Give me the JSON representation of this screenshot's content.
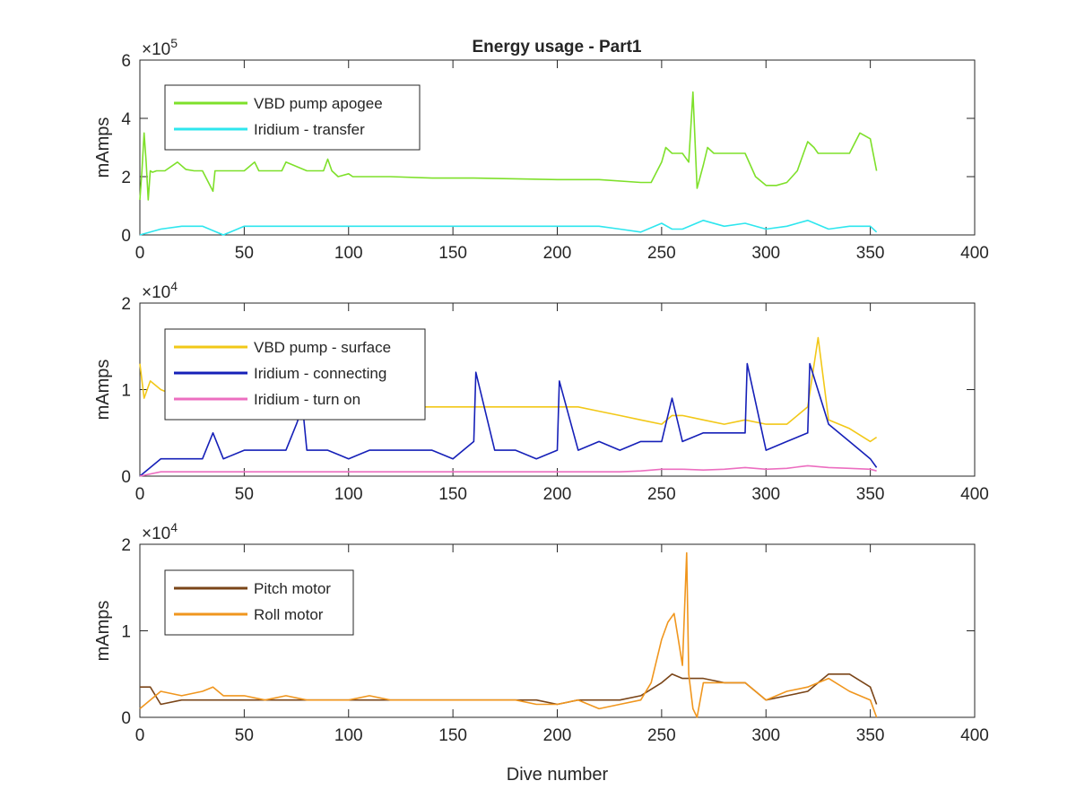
{
  "figure": {
    "title": "Energy usage - Part1"
  },
  "chart_data": [
    {
      "type": "line",
      "panel": "top",
      "title": "Energy usage - Part1",
      "xlabel": "",
      "ylabel": "mAmps",
      "y_exponent_base": "×10",
      "y_exponent": "5",
      "xlim": [
        0,
        400
      ],
      "ylim": [
        0,
        6
      ],
      "xticks": [
        0,
        50,
        100,
        150,
        200,
        250,
        300,
        350,
        400
      ],
      "yticks": [
        0,
        2,
        4,
        6
      ],
      "grid": false,
      "legend_position": "upper-left",
      "series": [
        {
          "name": "VBD pump apogee",
          "color": "#7ee02a",
          "x": [
            0,
            1,
            2,
            3,
            4,
            5,
            6,
            8,
            12,
            18,
            22,
            26,
            30,
            35,
            36,
            40,
            50,
            55,
            57,
            60,
            68,
            70,
            80,
            88,
            90,
            92,
            95,
            100,
            102,
            120,
            140,
            160,
            200,
            220,
            240,
            245,
            250,
            252,
            255,
            260,
            263,
            265,
            267,
            270,
            272,
            275,
            280,
            285,
            290,
            295,
            300,
            305,
            310,
            315,
            318,
            320,
            323,
            325,
            330,
            340,
            345,
            350,
            353
          ],
          "y": [
            1.2,
            2.2,
            3.5,
            2.5,
            1.2,
            2.2,
            2.15,
            2.2,
            2.2,
            2.5,
            2.25,
            2.2,
            2.2,
            1.5,
            2.2,
            2.2,
            2.2,
            2.5,
            2.2,
            2.2,
            2.2,
            2.5,
            2.2,
            2.2,
            2.6,
            2.2,
            2.0,
            2.1,
            2.0,
            2.0,
            1.95,
            1.95,
            1.9,
            1.9,
            1.8,
            1.8,
            2.5,
            3.0,
            2.8,
            2.8,
            2.5,
            4.9,
            1.6,
            2.4,
            3.0,
            2.8,
            2.8,
            2.8,
            2.8,
            2.0,
            1.7,
            1.7,
            1.8,
            2.2,
            2.8,
            3.2,
            3.0,
            2.8,
            2.8,
            2.8,
            3.5,
            3.3,
            2.2
          ]
        },
        {
          "name": "Iridium - transfer",
          "color": "#2ee6ee",
          "x": [
            0,
            10,
            20,
            30,
            40,
            50,
            60,
            70,
            80,
            90,
            100,
            110,
            120,
            130,
            140,
            150,
            160,
            170,
            180,
            190,
            200,
            210,
            220,
            230,
            240,
            250,
            255,
            260,
            270,
            280,
            290,
            300,
            310,
            320,
            330,
            340,
            350,
            353
          ],
          "y": [
            0,
            0.2,
            0.3,
            0.3,
            0,
            0.3,
            0.3,
            0.3,
            0.3,
            0.3,
            0.3,
            0.3,
            0.3,
            0.3,
            0.3,
            0.3,
            0.3,
            0.3,
            0.3,
            0.3,
            0.3,
            0.3,
            0.3,
            0.2,
            0.1,
            0.4,
            0.2,
            0.2,
            0.5,
            0.3,
            0.4,
            0.2,
            0.3,
            0.5,
            0.2,
            0.3,
            0.3,
            0.1
          ]
        }
      ]
    },
    {
      "type": "line",
      "panel": "middle",
      "title": "",
      "xlabel": "",
      "ylabel": "mAmps",
      "y_exponent_base": "×10",
      "y_exponent": "4",
      "xlim": [
        0,
        400
      ],
      "ylim": [
        0,
        2
      ],
      "xticks": [
        0,
        50,
        100,
        150,
        200,
        250,
        300,
        350,
        400
      ],
      "yticks": [
        0,
        1,
        2
      ],
      "grid": false,
      "legend_position": "upper-left",
      "series": [
        {
          "name": "VBD pump - surface",
          "color": "#f2c818",
          "x": [
            0,
            2,
            5,
            10,
            20,
            30,
            40,
            50,
            60,
            70,
            80,
            90,
            100,
            110,
            120,
            130,
            140,
            150,
            160,
            170,
            180,
            190,
            200,
            210,
            220,
            230,
            240,
            250,
            255,
            260,
            270,
            280,
            290,
            300,
            310,
            320,
            325,
            330,
            340,
            350,
            353
          ],
          "y": [
            1.3,
            0.9,
            1.1,
            1.0,
            0.9,
            0.85,
            0.85,
            0.8,
            0.8,
            0.8,
            0.8,
            0.8,
            0.8,
            0.8,
            0.8,
            0.8,
            0.8,
            0.8,
            0.8,
            0.8,
            0.8,
            0.8,
            0.8,
            0.8,
            0.75,
            0.7,
            0.65,
            0.6,
            0.7,
            0.7,
            0.65,
            0.6,
            0.65,
            0.6,
            0.6,
            0.8,
            1.6,
            0.65,
            0.55,
            0.4,
            0.45
          ]
        },
        {
          "name": "Iridium - connecting",
          "color": "#1620b8",
          "x": [
            0,
            10,
            20,
            30,
            35,
            40,
            50,
            60,
            70,
            75,
            78,
            80,
            90,
            100,
            110,
            120,
            130,
            140,
            150,
            160,
            161,
            170,
            180,
            190,
            200,
            201,
            210,
            220,
            230,
            240,
            250,
            255,
            260,
            270,
            280,
            290,
            291,
            300,
            310,
            320,
            321,
            330,
            340,
            350,
            353
          ],
          "y": [
            0,
            0.2,
            0.2,
            0.2,
            0.5,
            0.2,
            0.3,
            0.3,
            0.3,
            0.6,
            0.8,
            0.3,
            0.3,
            0.2,
            0.3,
            0.3,
            0.3,
            0.3,
            0.2,
            0.4,
            1.2,
            0.3,
            0.3,
            0.2,
            0.3,
            1.1,
            0.3,
            0.4,
            0.3,
            0.4,
            0.4,
            0.9,
            0.4,
            0.5,
            0.5,
            0.5,
            1.3,
            0.3,
            0.4,
            0.5,
            1.3,
            0.6,
            0.4,
            0.2,
            0.1
          ]
        },
        {
          "name": "Iridium - turn on",
          "color": "#ec6ec0",
          "x": [
            0,
            10,
            50,
            100,
            150,
            200,
            230,
            240,
            250,
            260,
            270,
            280,
            290,
            300,
            310,
            320,
            330,
            340,
            350,
            353
          ],
          "y": [
            0,
            0.05,
            0.05,
            0.05,
            0.05,
            0.05,
            0.05,
            0.06,
            0.08,
            0.08,
            0.07,
            0.08,
            0.1,
            0.08,
            0.09,
            0.12,
            0.1,
            0.09,
            0.08,
            0.06
          ]
        }
      ]
    },
    {
      "type": "line",
      "panel": "bottom",
      "title": "",
      "xlabel": "Dive number",
      "ylabel": "mAmps",
      "y_exponent_base": "×10",
      "y_exponent": "4",
      "xlim": [
        0,
        400
      ],
      "ylim": [
        0,
        2
      ],
      "xticks": [
        0,
        50,
        100,
        150,
        200,
        250,
        300,
        350,
        400
      ],
      "yticks": [
        0,
        1,
        2
      ],
      "grid": false,
      "legend_position": "upper-left",
      "series": [
        {
          "name": "Pitch motor",
          "color": "#7a4518",
          "x": [
            0,
            5,
            10,
            20,
            30,
            40,
            50,
            60,
            70,
            80,
            90,
            100,
            110,
            120,
            130,
            140,
            150,
            160,
            170,
            180,
            190,
            200,
            210,
            220,
            230,
            240,
            250,
            255,
            260,
            270,
            280,
            290,
            300,
            310,
            320,
            330,
            340,
            350,
            353
          ],
          "y": [
            0.35,
            0.35,
            0.15,
            0.2,
            0.2,
            0.2,
            0.2,
            0.2,
            0.2,
            0.2,
            0.2,
            0.2,
            0.2,
            0.2,
            0.2,
            0.2,
            0.2,
            0.2,
            0.2,
            0.2,
            0.2,
            0.15,
            0.2,
            0.2,
            0.2,
            0.25,
            0.4,
            0.5,
            0.45,
            0.45,
            0.4,
            0.4,
            0.2,
            0.25,
            0.3,
            0.5,
            0.5,
            0.35,
            0.15
          ]
        },
        {
          "name": "Roll motor",
          "color": "#f0961e",
          "x": [
            0,
            5,
            10,
            20,
            30,
            35,
            40,
            50,
            60,
            70,
            80,
            90,
            100,
            110,
            120,
            130,
            140,
            150,
            160,
            170,
            180,
            190,
            200,
            210,
            220,
            230,
            240,
            245,
            250,
            253,
            256,
            258,
            260,
            262,
            263,
            265,
            267,
            270,
            280,
            290,
            300,
            310,
            320,
            330,
            340,
            350,
            353
          ],
          "y": [
            0.1,
            0.2,
            0.3,
            0.25,
            0.3,
            0.35,
            0.25,
            0.25,
            0.2,
            0.25,
            0.2,
            0.2,
            0.2,
            0.25,
            0.2,
            0.2,
            0.2,
            0.2,
            0.2,
            0.2,
            0.2,
            0.15,
            0.15,
            0.2,
            0.1,
            0.15,
            0.2,
            0.4,
            0.9,
            1.1,
            1.2,
            0.9,
            0.6,
            1.9,
            0.5,
            0.1,
            0.0,
            0.4,
            0.4,
            0.4,
            0.2,
            0.3,
            0.35,
            0.45,
            0.3,
            0.2,
            0.0
          ]
        }
      ]
    }
  ]
}
